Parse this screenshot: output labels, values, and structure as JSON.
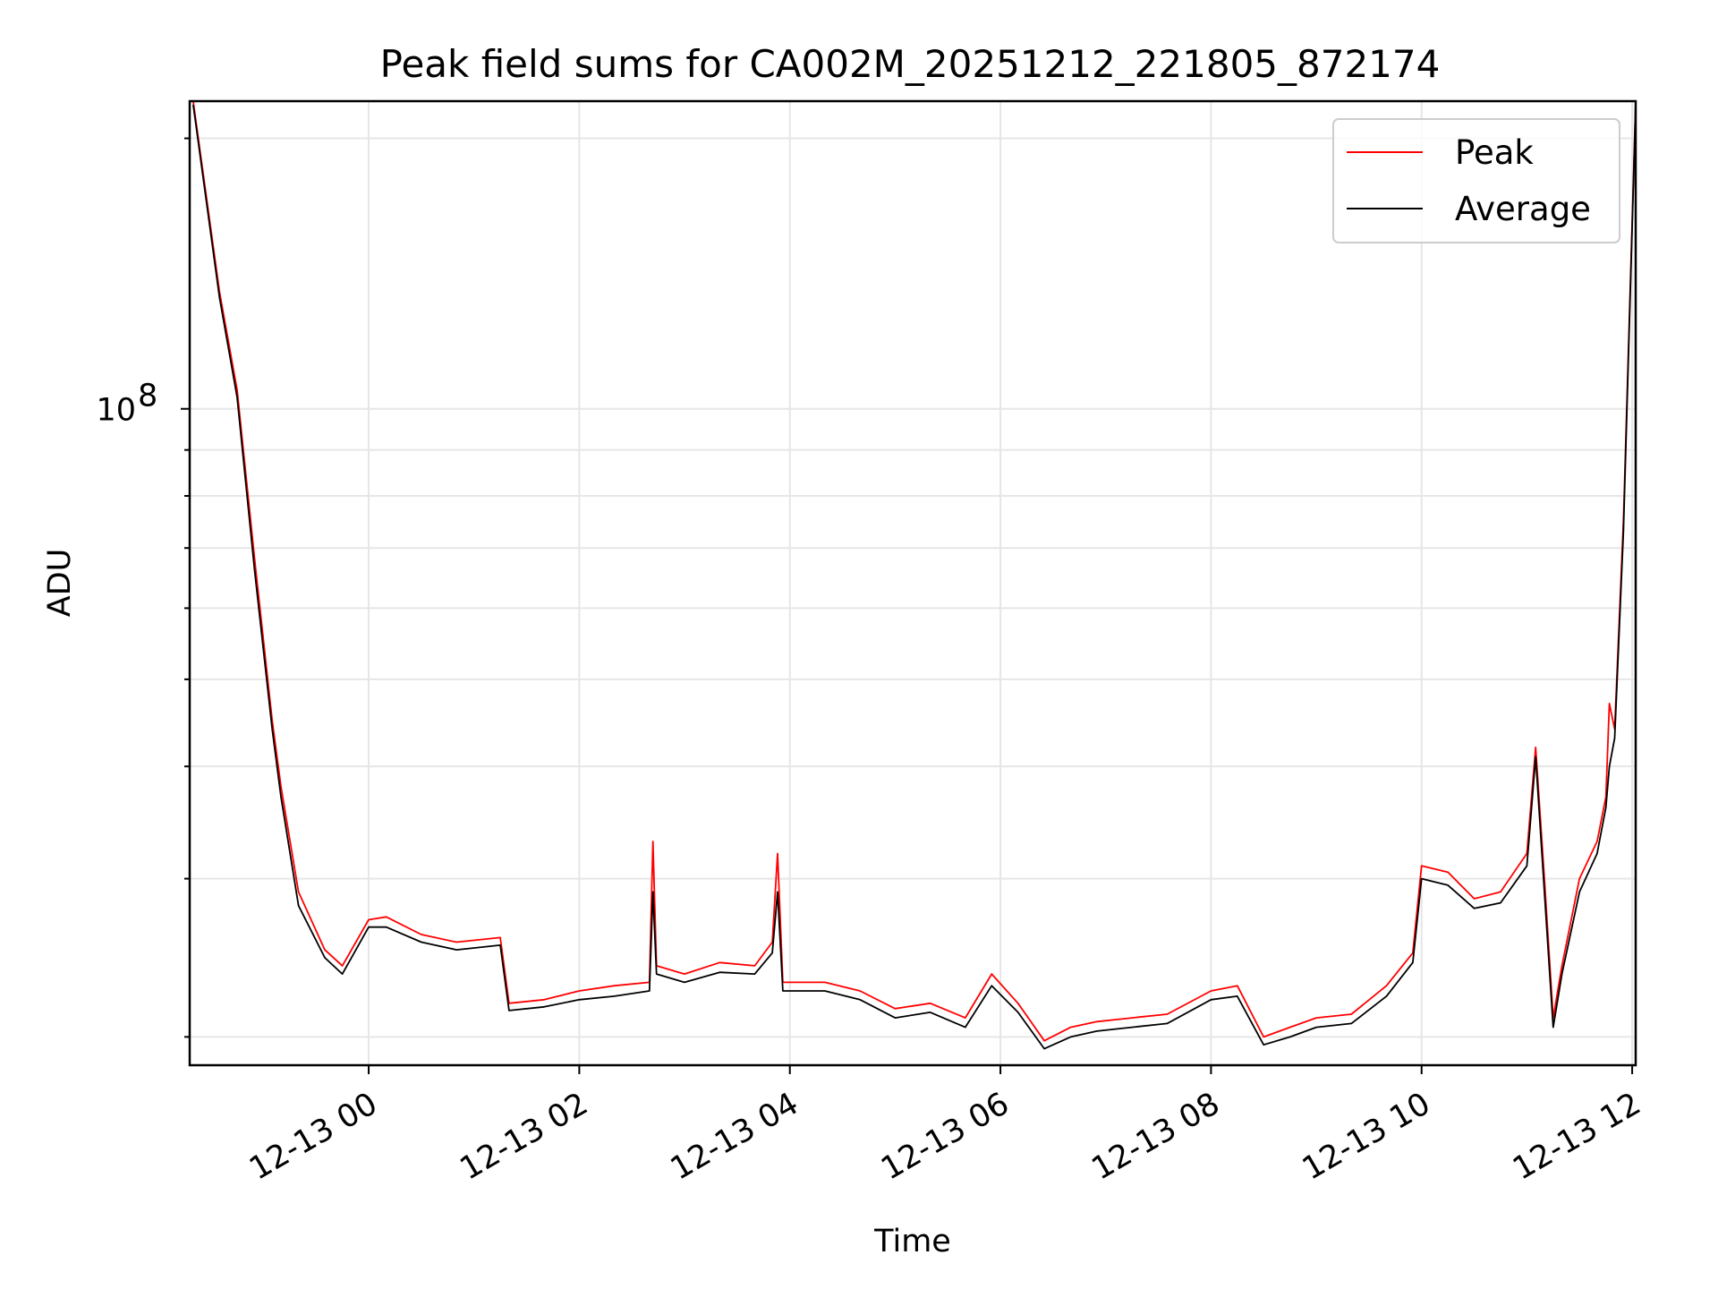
{
  "chart_data": {
    "type": "line",
    "title": "Peak field sums for CA002M_20251212_221805_872174",
    "xlabel": "Time",
    "ylabel": "ADU",
    "yscale": "log",
    "grid": true,
    "legend_position": "top-right",
    "x_ticks": [
      {
        "label": "12-13 00",
        "hour": 24
      },
      {
        "label": "12-13 02",
        "hour": 26
      },
      {
        "label": "12-13 04",
        "hour": 28
      },
      {
        "label": "12-13 06",
        "hour": 30
      },
      {
        "label": "12-13 08",
        "hour": 32
      },
      {
        "label": "12-13 10",
        "hour": 34
      },
      {
        "label": "12-13 12",
        "hour": 36
      }
    ],
    "y_ticks": [
      {
        "label": "10",
        "exponent": "8",
        "value": 100000000
      }
    ],
    "xlim": [
      "2025-12-12 22:18",
      "2025-12-13 12:02"
    ],
    "ylim": [
      18600000,
      220000000
    ],
    "series": [
      {
        "name": "Peak",
        "color": "#ff0000",
        "x": [
          "22:20",
          "22:35",
          "22:45",
          "22:55",
          "23:05",
          "23:10",
          "23:20",
          "23:35",
          "23:45",
          "00:00",
          "00:10",
          "00:30",
          "00:50",
          "01:15",
          "01:20",
          "01:40",
          "02:00",
          "02:20",
          "02:40",
          "02:42",
          "02:44",
          "03:00",
          "03:20",
          "03:40",
          "03:50",
          "03:53",
          "03:56",
          "04:20",
          "04:40",
          "05:00",
          "05:20",
          "05:40",
          "05:55",
          "06:10",
          "06:25",
          "06:40",
          "06:55",
          "07:15",
          "07:35",
          "08:00",
          "08:15",
          "08:30",
          "08:45",
          "09:00",
          "09:20",
          "09:40",
          "09:55",
          "10:00",
          "10:15",
          "10:30",
          "10:45",
          "11:00",
          "11:05",
          "11:10",
          "11:15",
          "11:20",
          "11:30",
          "11:40",
          "11:45",
          "11:47",
          "11:50",
          "11:55",
          "12:02"
        ],
        "y": [
          220000000,
          135000000,
          105000000,
          68000000,
          45000000,
          38000000,
          29000000,
          25000000,
          24000000,
          27000000,
          27200000,
          26000000,
          25500000,
          25800000,
          21800000,
          22000000,
          22500000,
          22800000,
          23000000,
          33000000,
          24000000,
          23500000,
          24200000,
          24000000,
          25500000,
          32000000,
          23000000,
          23000000,
          22500000,
          21500000,
          21800000,
          21000000,
          23500000,
          21800000,
          19800000,
          20500000,
          20800000,
          21000000,
          21200000,
          22500000,
          22800000,
          20000000,
          20500000,
          21000000,
          21200000,
          22800000,
          24800000,
          31000000,
          30500000,
          28500000,
          29000000,
          32000000,
          42000000,
          30000000,
          21000000,
          24000000,
          30000000,
          33000000,
          37000000,
          47000000,
          44000000,
          75000000,
          220000000
        ]
      },
      {
        "name": "Average",
        "color": "#000000",
        "x": [
          "22:20",
          "22:35",
          "22:45",
          "22:55",
          "23:05",
          "23:10",
          "23:20",
          "23:35",
          "23:45",
          "00:00",
          "00:10",
          "00:30",
          "00:50",
          "01:15",
          "01:20",
          "01:40",
          "02:00",
          "02:20",
          "02:40",
          "02:42",
          "02:44",
          "03:00",
          "03:20",
          "03:40",
          "03:50",
          "03:53",
          "03:56",
          "04:20",
          "04:40",
          "05:00",
          "05:20",
          "05:40",
          "05:55",
          "06:10",
          "06:25",
          "06:40",
          "06:55",
          "07:15",
          "07:35",
          "08:00",
          "08:15",
          "08:30",
          "08:45",
          "09:00",
          "09:20",
          "09:40",
          "09:55",
          "10:00",
          "10:15",
          "10:30",
          "10:45",
          "11:00",
          "11:05",
          "11:10",
          "11:15",
          "11:20",
          "11:30",
          "11:40",
          "11:45",
          "11:47",
          "11:50",
          "11:55",
          "12:02"
        ],
        "y": [
          218000000,
          133000000,
          103000000,
          66000000,
          44000000,
          37000000,
          28000000,
          24500000,
          23500000,
          26500000,
          26500000,
          25500000,
          25000000,
          25300000,
          21400000,
          21600000,
          22000000,
          22200000,
          22500000,
          29000000,
          23500000,
          23000000,
          23600000,
          23500000,
          24800000,
          29000000,
          22500000,
          22500000,
          22000000,
          21000000,
          21300000,
          20500000,
          22800000,
          21300000,
          19400000,
          20000000,
          20300000,
          20500000,
          20700000,
          22000000,
          22200000,
          19600000,
          20000000,
          20500000,
          20700000,
          22200000,
          24200000,
          30000000,
          29500000,
          27800000,
          28200000,
          31000000,
          41000000,
          29000000,
          20500000,
          23500000,
          29000000,
          32000000,
          36000000,
          40000000,
          43000000,
          73000000,
          218000000
        ]
      }
    ]
  }
}
